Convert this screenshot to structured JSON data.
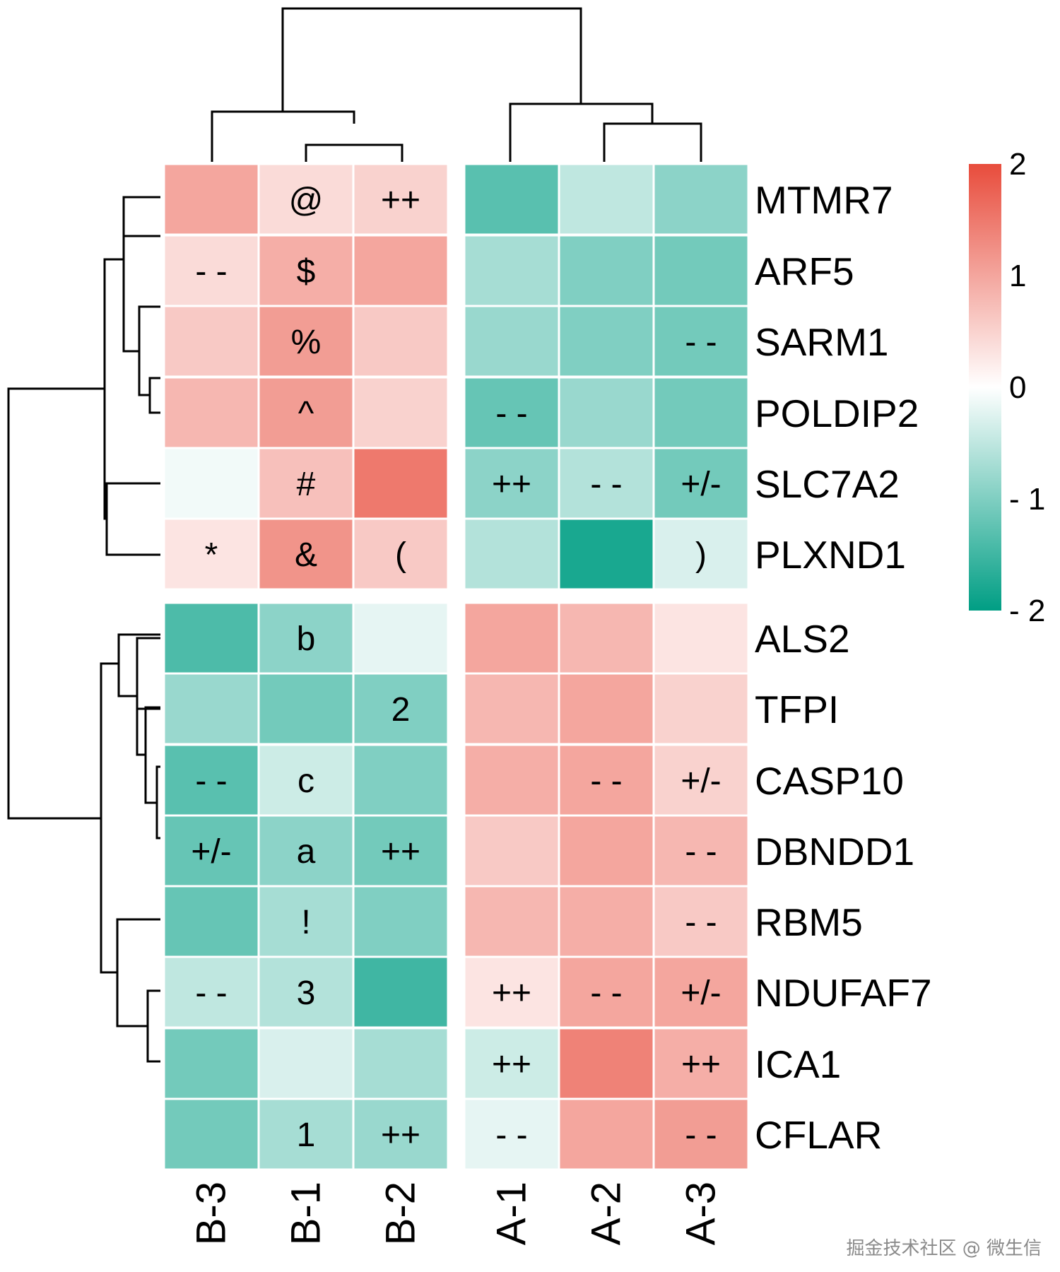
{
  "chart_data": {
    "type": "heatmap",
    "title": "",
    "columns": [
      "B-3",
      "B-1",
      "B-2",
      "A-1",
      "A-2",
      "A-3"
    ],
    "column_groups": [
      [
        "B-3",
        "B-1",
        "B-2"
      ],
      [
        "A-1",
        "A-2",
        "A-3"
      ]
    ],
    "rows": [
      "MTMR7",
      "ARF5",
      "SARM1",
      "POLDIP2",
      "SLC7A2",
      "PLXND1",
      "ALS2",
      "TFPI",
      "CASP10",
      "DBNDD1",
      "RBM5",
      "NDUFAF7",
      "ICA1",
      "CFLAR"
    ],
    "row_groups": [
      [
        "MTMR7",
        "ARF5",
        "SARM1",
        "POLDIP2",
        "SLC7A2",
        "PLXND1"
      ],
      [
        "ALS2",
        "TFPI",
        "CASP10",
        "DBNDD1",
        "RBM5",
        "NDUFAF7",
        "ICA1",
        "CFLAR"
      ]
    ],
    "values": [
      [
        1.0,
        0.4,
        0.5,
        -1.3,
        -0.5,
        -0.9
      ],
      [
        0.4,
        0.9,
        1.0,
        -0.7,
        -1.0,
        -1.1
      ],
      [
        0.6,
        1.1,
        0.6,
        -0.8,
        -1.0,
        -1.1
      ],
      [
        0.8,
        1.1,
        0.5,
        -1.2,
        -0.8,
        -1.1
      ],
      [
        -0.1,
        0.7,
        1.5,
        -0.9,
        -0.6,
        -1.1
      ],
      [
        0.3,
        1.2,
        0.6,
        -0.6,
        -1.8,
        -0.3
      ],
      [
        -1.4,
        -0.9,
        -0.2,
        1.0,
        0.8,
        0.3
      ],
      [
        -0.8,
        -1.1,
        -1.0,
        0.8,
        1.0,
        0.5
      ],
      [
        -1.3,
        -0.4,
        -1.0,
        0.9,
        1.0,
        0.5
      ],
      [
        -1.2,
        -0.9,
        -1.1,
        0.6,
        1.0,
        0.8
      ],
      [
        -1.2,
        -0.7,
        -1.0,
        0.8,
        0.9,
        0.6
      ],
      [
        -0.5,
        -0.6,
        -1.5,
        0.3,
        1.0,
        1.0
      ],
      [
        -1.1,
        -0.3,
        -0.7,
        -0.4,
        1.4,
        0.9
      ],
      [
        -1.1,
        -0.7,
        -0.8,
        -0.2,
        1.0,
        1.1
      ]
    ],
    "annotations": [
      [
        "",
        "@",
        "++",
        "",
        "",
        ""
      ],
      [
        "- -",
        "$",
        "",
        "",
        "",
        ""
      ],
      [
        "",
        "%",
        "",
        "",
        "",
        "- -"
      ],
      [
        "",
        "^",
        "",
        "- -",
        "",
        ""
      ],
      [
        "",
        "#",
        "",
        "++",
        "- -",
        "+/-"
      ],
      [
        "*",
        "&",
        "(",
        "",
        "",
        ")"
      ],
      [
        "",
        "b",
        "",
        "",
        "",
        ""
      ],
      [
        "",
        "",
        "2",
        "",
        "",
        ""
      ],
      [
        "- -",
        "c",
        "",
        "",
        "- -",
        "+/-"
      ],
      [
        "+/-",
        "a",
        "++",
        "",
        "",
        "- -"
      ],
      [
        "",
        "!",
        "",
        "",
        "",
        "- -"
      ],
      [
        "- -",
        "3",
        "",
        "++",
        "- -",
        "+/-"
      ],
      [
        "",
        "",
        "",
        "++",
        "",
        "++"
      ],
      [
        "",
        "1",
        "++",
        "- -",
        "",
        "- -"
      ]
    ],
    "color_scale": {
      "min": -2,
      "max": 2,
      "low_color": "#009e84",
      "mid_color": "#ffffff",
      "high_color": "#e84c3c",
      "ticks": [
        2,
        1,
        0,
        -1,
        -2
      ],
      "tick_labels": [
        "2",
        "1",
        "0",
        "- 1",
        "- 2"
      ]
    },
    "legend_position": "right",
    "grid_lines": "white cell borders"
  },
  "watermark": "掘金技术社区 @ 微生信"
}
